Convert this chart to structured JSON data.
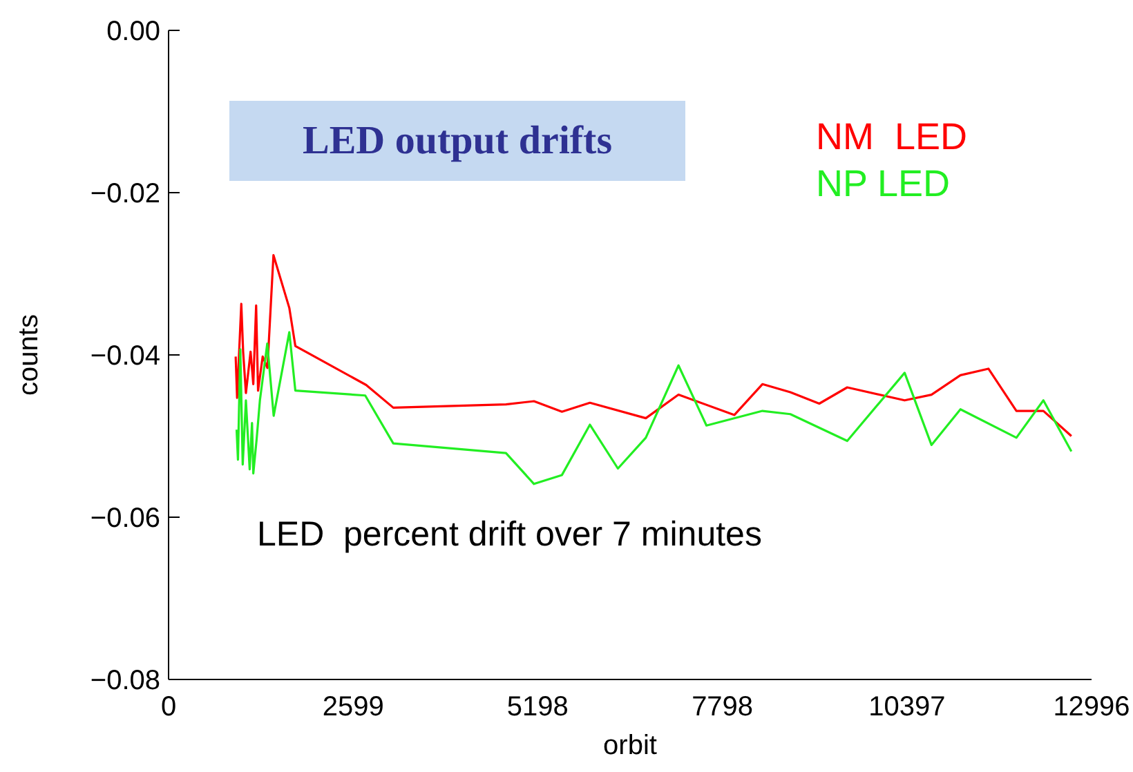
{
  "chart_data": {
    "type": "line",
    "title": "LED output drifts",
    "xlabel": "orbit",
    "ylabel": "counts",
    "annotations": [
      "LED  percent drift over 7 minutes"
    ],
    "xlim": [
      0,
      12996
    ],
    "xticks": [
      0,
      2599,
      5198,
      7798,
      10397,
      12996
    ],
    "ylim": [
      -0.08,
      0
    ],
    "yticks": [
      {
        "value": -0.08,
        "label": "−0.08"
      },
      {
        "value": -0.06,
        "label": "−0.06"
      },
      {
        "value": -0.04,
        "label": "−0.04"
      },
      {
        "value": -0.02,
        "label": "−0.02"
      },
      {
        "value": 0,
        "label": "0.00"
      }
    ],
    "legend": "top right",
    "series": [
      {
        "name": "NM  LED",
        "color": "#ff0000",
        "x": [
          945,
          965,
          1024,
          1050,
          1089,
          1155,
          1193,
          1233,
          1260,
          1325,
          1392,
          1477,
          1700,
          1785,
          2782,
          3164,
          4751,
          5145,
          5539,
          5933,
          6720,
          7180,
          7967,
          8362,
          8755,
          9162,
          9556,
          10364,
          10742,
          11150,
          11544,
          11938,
          12318,
          12712
        ],
        "values": [
          -0.0402,
          -0.0453,
          -0.0337,
          -0.0396,
          -0.0447,
          -0.0396,
          -0.0436,
          -0.0339,
          -0.0444,
          -0.0402,
          -0.0416,
          -0.0277,
          -0.0342,
          -0.0389,
          -0.0437,
          -0.0465,
          -0.0461,
          -0.0457,
          -0.047,
          -0.0459,
          -0.0478,
          -0.0449,
          -0.0474,
          -0.0436,
          -0.0446,
          -0.046,
          -0.044,
          -0.0456,
          -0.0449,
          -0.0425,
          -0.0417,
          -0.0469,
          -0.0469,
          -0.05
        ]
      },
      {
        "name": "NP LED",
        "color": "#22ee22",
        "x": [
          958,
          977,
          1010,
          1044,
          1089,
          1142,
          1175,
          1193,
          1240,
          1286,
          1390,
          1480,
          1700,
          1785,
          2769,
          3164,
          4751,
          5145,
          5539,
          5933,
          6327,
          6720,
          7180,
          7574,
          8362,
          8755,
          9556,
          10364,
          10742,
          11150,
          11938,
          12318,
          12712
        ],
        "values": [
          -0.0492,
          -0.0529,
          -0.0393,
          -0.0535,
          -0.0456,
          -0.0541,
          -0.0484,
          -0.0546,
          -0.0504,
          -0.0456,
          -0.0386,
          -0.0475,
          -0.0372,
          -0.0444,
          -0.045,
          -0.0509,
          -0.0521,
          -0.0559,
          -0.0548,
          -0.0486,
          -0.054,
          -0.0502,
          -0.0413,
          -0.0487,
          -0.0469,
          -0.0473,
          -0.0506,
          -0.0422,
          -0.0511,
          -0.0467,
          -0.0502,
          -0.0456,
          -0.0519
        ]
      }
    ]
  }
}
